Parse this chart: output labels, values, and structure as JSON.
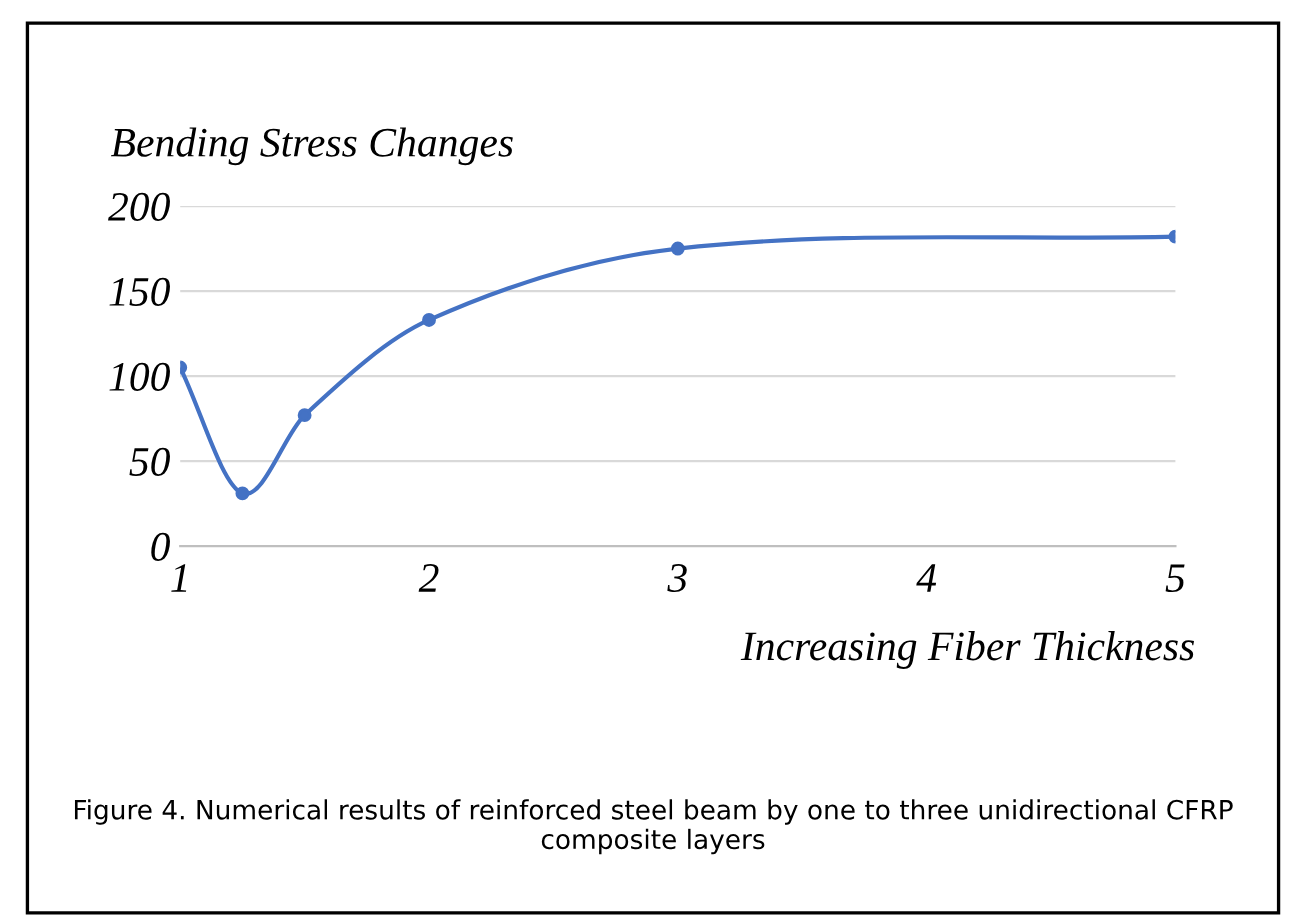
{
  "chart_data": {
    "type": "line",
    "ylabel": "Bending Stress Changes",
    "xlabel": "Increasing Fiber Thickness",
    "x": [
      1,
      1.25,
      1.5,
      2,
      3,
      5
    ],
    "series": [
      {
        "color": "#4472c4",
        "values": [
          105,
          31,
          77,
          133,
          175,
          182
        ]
      }
    ],
    "xlim": [
      1,
      5
    ],
    "xticks": [
      1,
      2,
      3,
      4,
      5
    ],
    "ylim": [
      0,
      200
    ],
    "yticks": [
      0,
      50,
      100,
      150,
      200
    ],
    "grid": "y",
    "marker": "circle",
    "line_style": "solid",
    "annotations": [
      "Figure 4. Numerical results of reinforced steel beam by one to three unidirectional CFRP composite layers"
    ]
  }
}
